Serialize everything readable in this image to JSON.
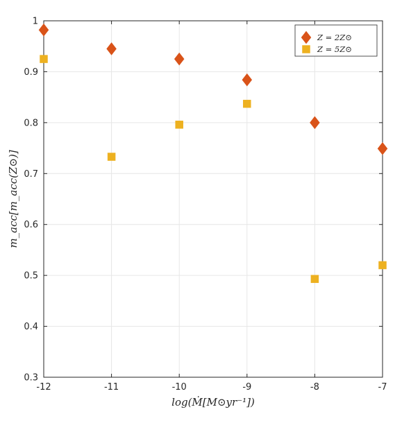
{
  "chart_data": {
    "type": "scatter",
    "title": "",
    "xlabel": "log(Ṁ[M⊙yr⁻¹])",
    "ylabel": "m_acc[m_acc(Z⊙)]",
    "xlim": [
      -12,
      -7
    ],
    "ylim": [
      0.3,
      1
    ],
    "xticks": [
      -12,
      -11,
      -10,
      -9,
      -8,
      -7
    ],
    "xtick_labels": [
      "-12",
      "-11",
      "-10",
      "-9",
      "-8",
      "-7"
    ],
    "yticks": [
      0.3,
      0.4,
      0.5,
      0.6,
      0.7,
      0.8,
      0.9,
      1
    ],
    "ytick_labels": [
      "0.3",
      "0.4",
      "0.5",
      "0.6",
      "0.7",
      "0.8",
      "0.9",
      "1"
    ],
    "grid": true,
    "legend_position": "top-right",
    "series": [
      {
        "name": "Z = 2Z⊙",
        "marker": "diamond",
        "color": "#D95319",
        "x": [
          -12,
          -11,
          -10,
          -9,
          -8,
          -7
        ],
        "y": [
          0.982,
          0.945,
          0.925,
          0.884,
          0.8,
          0.749
        ]
      },
      {
        "name": "Z = 5Z⊙",
        "marker": "square",
        "color": "#EDB120",
        "x": [
          -12,
          -11,
          -10,
          -9,
          -8,
          -7
        ],
        "y": [
          0.925,
          0.733,
          0.796,
          0.837,
          0.493,
          0.52
        ]
      }
    ]
  }
}
